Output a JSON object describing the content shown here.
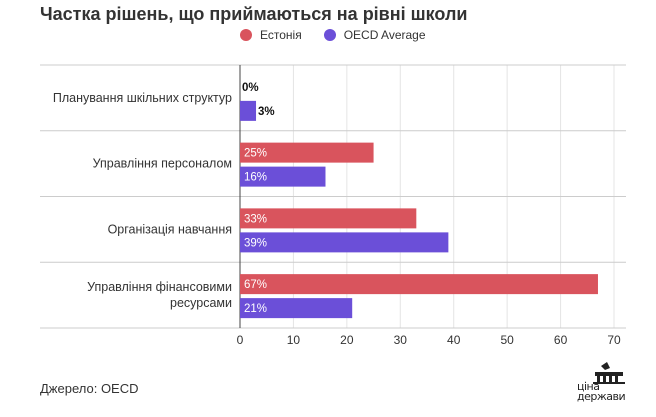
{
  "chart_data": {
    "type": "bar",
    "orientation": "horizontal",
    "title": "Частка рішень, що приймаються на рівні школи",
    "categories": [
      "Планування шкільних структур",
      "Управління персоналом",
      "Організація навчання",
      "Управління фінансовими ресурсами"
    ],
    "series": [
      {
        "name": "Естонія",
        "color": "#d9545d",
        "values": [
          0,
          25,
          33,
          67
        ],
        "labels": [
          "0%",
          "25%",
          "33%",
          "67%"
        ]
      },
      {
        "name": "OECD Average",
        "color": "#6b4fd8",
        "values": [
          3,
          16,
          39,
          21
        ],
        "labels": [
          "3%",
          "16%",
          "39%",
          "21%"
        ]
      }
    ],
    "xlim": [
      0,
      70
    ],
    "xticks": [
      "0",
      "10",
      "20",
      "30",
      "40",
      "50",
      "60",
      "70"
    ],
    "xtick_values": [
      0,
      10,
      20,
      30,
      40,
      50,
      60,
      70
    ],
    "grid": true,
    "legend": "top"
  },
  "source": "Джерело: OECD",
  "logo": {
    "line1": "ціна",
    "line2": "держави"
  }
}
